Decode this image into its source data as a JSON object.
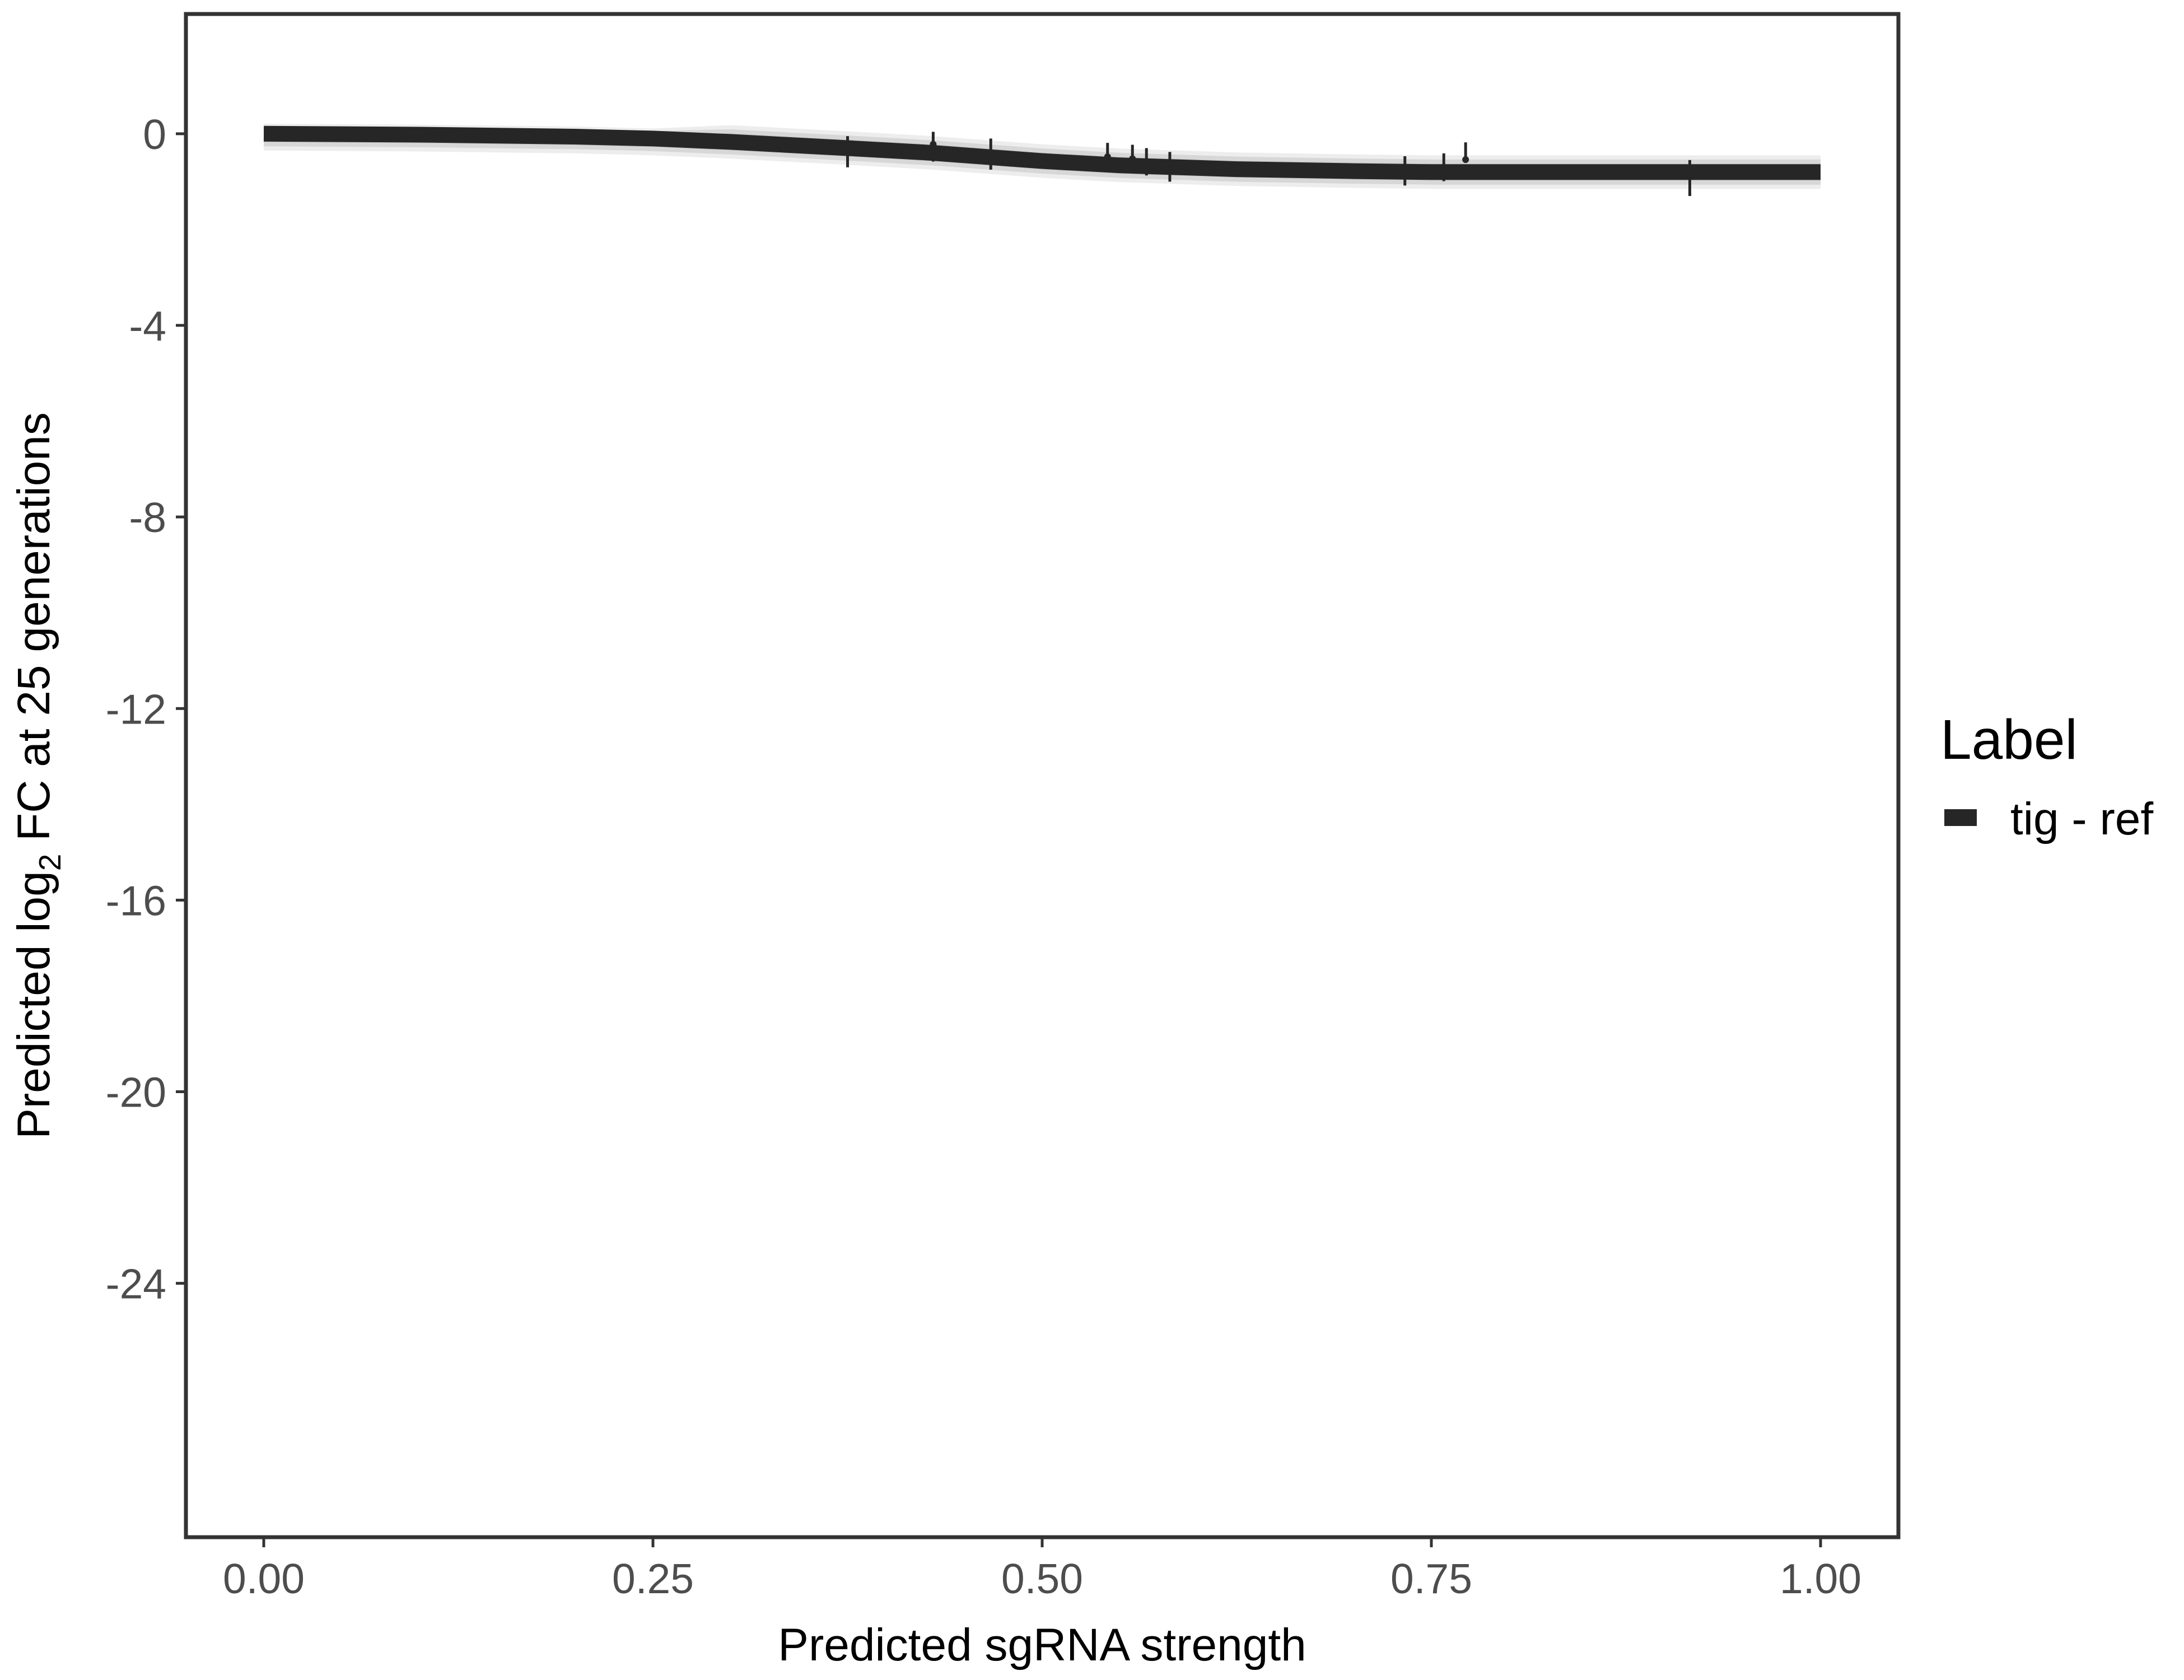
{
  "chart_data": {
    "type": "line",
    "title": "",
    "xlabel": "Predicted sgRNA strength",
    "ylabel_prefix": "Predicted  log",
    "ylabel_sub": "2",
    "ylabel_suffix": " FC at 25 generations",
    "xlim": [
      -0.05,
      1.05
    ],
    "ylim": [
      -29.3,
      2.5
    ],
    "xticks": [
      0,
      0.25,
      0.5,
      0.75,
      1.0
    ],
    "xtick_labels": [
      "0.00",
      "0.25",
      "0.50",
      "0.75",
      "1.00"
    ],
    "yticks": [
      0,
      -4,
      -8,
      -12,
      -16,
      -20,
      -24
    ],
    "ytick_labels": [
      "0",
      "-4",
      "-8",
      "-12",
      "-16",
      "-20",
      "-24"
    ],
    "grid": false,
    "legend": {
      "title": "Label",
      "placement": "right",
      "entries": [
        "tig - ref"
      ]
    },
    "series": [
      {
        "name": "tig - ref",
        "color": "#262626",
        "x": [
          0,
          0.1,
          0.2,
          0.25,
          0.3,
          0.375,
          0.43,
          0.5,
          0.55,
          0.625,
          0.7,
          0.75,
          0.85,
          1.0
        ],
        "y": [
          0,
          -0.02,
          -0.06,
          -0.1,
          -0.17,
          -0.3,
          -0.4,
          -0.57,
          -0.66,
          -0.74,
          -0.78,
          -0.8,
          -0.8,
          -0.8
        ],
        "band_halfwidth": 0.35
      }
    ],
    "error_bars": [
      {
        "x": 0.375,
        "y": -0.38,
        "lo": -0.7,
        "hi": -0.05
      },
      {
        "x": 0.43,
        "y": -0.22,
        "lo": -0.58,
        "hi": 0.04
      },
      {
        "x": 0.467,
        "y": -0.42,
        "lo": -0.75,
        "hi": -0.1
      },
      {
        "x": 0.542,
        "y": -0.48,
        "lo": -0.77,
        "hi": -0.19
      },
      {
        "x": 0.558,
        "y": -0.52,
        "lo": -0.81,
        "hi": -0.23
      },
      {
        "x": 0.567,
        "y": -0.58,
        "lo": -0.87,
        "hi": -0.3
      },
      {
        "x": 0.582,
        "y": -0.69,
        "lo": -1.0,
        "hi": -0.38
      },
      {
        "x": 0.733,
        "y": -0.78,
        "lo": -1.08,
        "hi": -0.47
      },
      {
        "x": 0.758,
        "y": -0.7,
        "lo": -0.99,
        "hi": -0.41
      },
      {
        "x": 0.772,
        "y": -0.54,
        "lo": -0.61,
        "hi": -0.18
      },
      {
        "x": 0.916,
        "y": -0.9,
        "lo": -1.3,
        "hi": -0.55
      }
    ]
  }
}
